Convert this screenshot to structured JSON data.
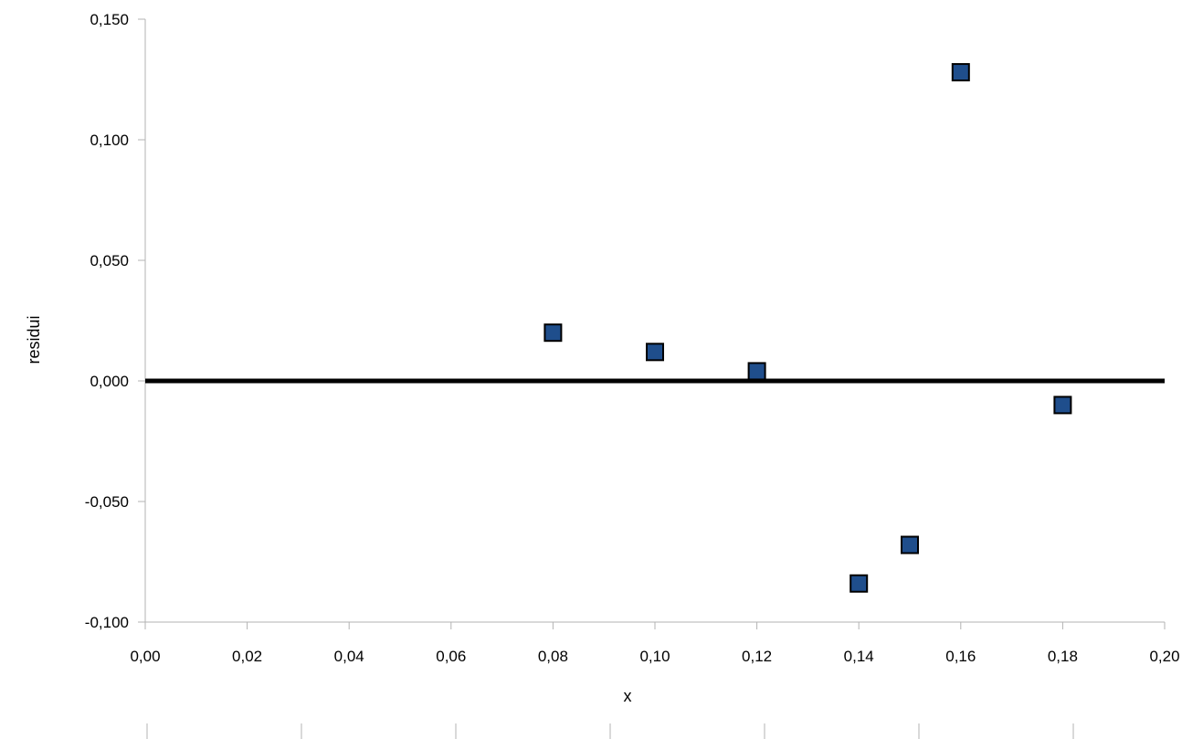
{
  "chart_data": {
    "type": "scatter",
    "title": "",
    "xlabel": "x",
    "ylabel": "residui",
    "xlim": [
      0,
      0.2
    ],
    "ylim": [
      -0.1,
      0.15
    ],
    "x_ticks": [
      0,
      0.02,
      0.04,
      0.06,
      0.08,
      0.1,
      0.12,
      0.14,
      0.16,
      0.18,
      0.2
    ],
    "x_tick_labels": [
      "0,00",
      "0,02",
      "0,04",
      "0,06",
      "0,08",
      "0,10",
      "0,12",
      "0,14",
      "0,16",
      "0,18",
      "0,20"
    ],
    "y_ticks": [
      -0.1,
      -0.05,
      0,
      0.05,
      0.1,
      0.15
    ],
    "y_tick_labels": [
      "-0,100",
      "-0,050",
      "0,000",
      "0,050",
      "0,100",
      "0,150"
    ],
    "grid": false,
    "legend": "none",
    "series": [
      {
        "marker": "square",
        "color": "#1f4e8c",
        "points": [
          {
            "x": 0.08,
            "y": 0.02
          },
          {
            "x": 0.1,
            "y": 0.012
          },
          {
            "x": 0.12,
            "y": 0.004
          },
          {
            "x": 0.14,
            "y": -0.084
          },
          {
            "x": 0.15,
            "y": -0.068
          },
          {
            "x": 0.16,
            "y": 0.128
          },
          {
            "x": 0.18,
            "y": -0.01
          }
        ]
      }
    ],
    "reference_line": {
      "y": 0,
      "color": "#000000"
    }
  }
}
